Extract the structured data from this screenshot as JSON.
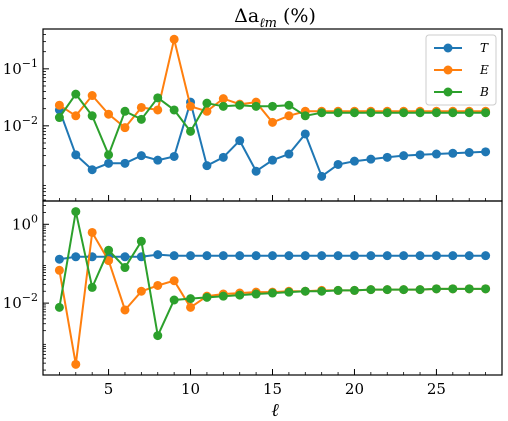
{
  "chart_data": {
    "type": "line",
    "title_prefix": "Δa",
    "title_sub": "ℓm",
    "title_suffix": " (%)",
    "xlabel": "ℓ",
    "x_ticks": [
      5,
      10,
      15,
      20,
      25
    ],
    "xlim": [
      1,
      29
    ],
    "legend": {
      "placement": "top-right",
      "entries": [
        "T",
        "E",
        "B"
      ]
    },
    "colors": {
      "T": "#1f77b4",
      "E": "#ff7f0e",
      "B": "#2ca02c"
    },
    "x": [
      2,
      3,
      4,
      5,
      6,
      7,
      8,
      9,
      10,
      11,
      12,
      13,
      14,
      15,
      16,
      17,
      18,
      19,
      20,
      21,
      22,
      23,
      24,
      25,
      26,
      27,
      28
    ],
    "panels": [
      {
        "yscale": "log",
        "ylim": [
          0.00048,
          0.5
        ],
        "y_ticks": [
          {
            "value": 0.1,
            "base": "10",
            "exp": "−1"
          },
          {
            "value": 0.01,
            "base": "10",
            "exp": "−2"
          }
        ],
        "series": [
          {
            "name": "T",
            "values": [
              0.019,
              0.0031,
              0.0017,
              0.0022,
              0.0022,
              0.003,
              0.0025,
              0.0029,
              0.026,
              0.002,
              0.0028,
              0.0055,
              0.0016,
              0.0025,
              0.0032,
              0.0072,
              0.0013,
              0.0021,
              0.0024,
              0.0026,
              0.0028,
              0.003,
              0.0031,
              0.0032,
              0.0033,
              0.0034,
              0.0035
            ]
          },
          {
            "name": "E",
            "values": [
              0.023,
              0.015,
              0.034,
              0.016,
              0.0093,
              0.021,
              0.019,
              0.33,
              0.022,
              0.018,
              0.03,
              0.024,
              0.026,
              0.0115,
              0.015,
              0.018,
              0.018,
              0.018,
              0.018,
              0.018,
              0.018,
              0.018,
              0.018,
              0.018,
              0.018,
              0.018,
              0.018
            ]
          },
          {
            "name": "B",
            "values": [
              0.014,
              0.036,
              0.015,
              0.0031,
              0.018,
              0.013,
              0.031,
              0.019,
              0.008,
              0.025,
              0.022,
              0.023,
              0.022,
              0.022,
              0.023,
              0.015,
              0.017,
              0.017,
              0.017,
              0.017,
              0.017,
              0.017,
              0.017,
              0.017,
              0.017,
              0.017,
              0.017
            ]
          }
        ]
      },
      {
        "yscale": "log",
        "ylim": [
          0.00015,
          3.9
        ],
        "y_ticks": [
          {
            "value": 1,
            "base": "10",
            "exp": "0"
          },
          {
            "value": 0.01,
            "base": "10",
            "exp": "−2"
          }
        ],
        "series": [
          {
            "name": "T",
            "values": [
              0.13,
              0.15,
              0.15,
              0.15,
              0.15,
              0.15,
              0.17,
              0.16,
              0.16,
              0.16,
              0.16,
              0.16,
              0.16,
              0.16,
              0.16,
              0.16,
              0.16,
              0.16,
              0.16,
              0.16,
              0.16,
              0.16,
              0.16,
              0.16,
              0.16,
              0.16,
              0.16
            ]
          },
          {
            "name": "E",
            "values": [
              0.068,
              0.00028,
              0.62,
              0.12,
              0.0067,
              0.02,
              0.028,
              0.037,
              0.0078,
              0.015,
              0.017,
              0.018,
              0.019,
              0.019,
              0.02,
              0.02,
              0.021,
              0.021,
              0.021,
              0.022,
              0.022,
              0.022,
              0.022,
              0.023,
              0.023,
              0.023,
              0.023
            ]
          },
          {
            "name": "B",
            "values": [
              0.0078,
              2.1,
              0.025,
              0.22,
              0.08,
              0.37,
              0.0015,
              0.012,
              0.013,
              0.014,
              0.015,
              0.016,
              0.017,
              0.018,
              0.019,
              0.02,
              0.02,
              0.021,
              0.021,
              0.022,
              0.022,
              0.022,
              0.022,
              0.023,
              0.023,
              0.023,
              0.023
            ]
          }
        ]
      }
    ]
  }
}
